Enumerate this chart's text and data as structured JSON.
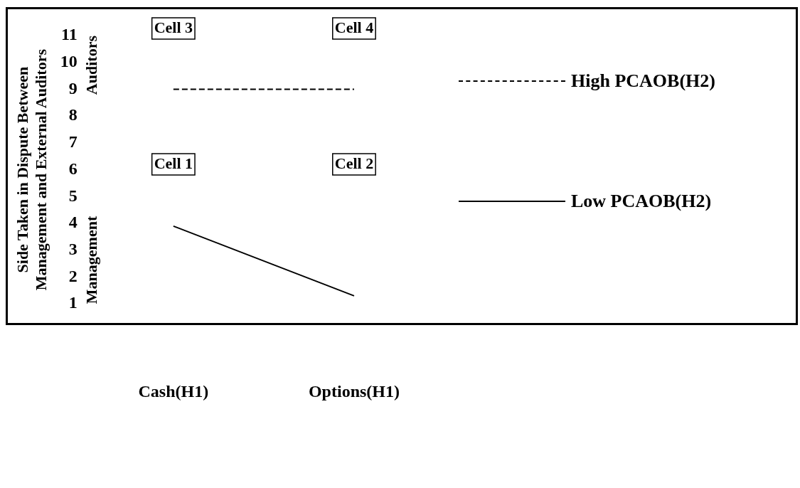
{
  "chart_data": {
    "type": "line",
    "ylabel": "Side Taken in Dispute Between Management and External Auditors",
    "categories": [
      "Cash(H1)",
      "Options(H1)"
    ],
    "series": [
      {
        "name": "High PCAOB(H2)",
        "color": "#000000",
        "values": [
          9,
          9
        ],
        "line_style": "dashed"
      },
      {
        "name": "Low PCAOB(H2)",
        "color": "#000000",
        "values": [
          3.9,
          1.3
        ],
        "line_style": "solid"
      }
    ],
    "ylim": [
      1,
      11
    ],
    "yticks": [
      1,
      2,
      3,
      4,
      5,
      6,
      7,
      8,
      9,
      10,
      11
    ],
    "grid": false,
    "legend": "right",
    "marker": "none",
    "annotations": [
      "Management",
      "Auditors",
      "Cell 1",
      "Cell 2",
      "Cell 3",
      "Cell 4"
    ]
  }
}
